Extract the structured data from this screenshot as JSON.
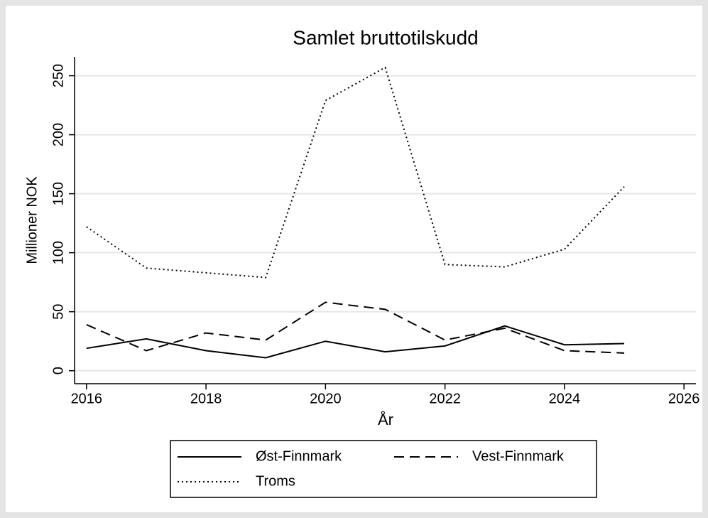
{
  "chart_data": {
    "type": "line",
    "title": "Samlet bruttotilskudd",
    "xlabel": "År",
    "ylabel": "Millioner NOK",
    "x": [
      2016,
      2017,
      2018,
      2019,
      2020,
      2021,
      2022,
      2023,
      2024,
      2025
    ],
    "series": [
      {
        "name": "Øst-Finnmark",
        "color": "#000000",
        "style": "solid",
        "values": [
          19,
          27,
          17,
          11,
          25,
          16,
          21,
          38,
          22,
          23
        ]
      },
      {
        "name": "Vest-Finnmark",
        "color": "#000000",
        "style": "dashed",
        "values": [
          39,
          17,
          32,
          26,
          58,
          52,
          26,
          36,
          17,
          15
        ]
      },
      {
        "name": "Troms",
        "color": "#000000",
        "style": "dotted",
        "values": [
          122,
          87,
          83,
          79,
          229,
          257,
          90,
          88,
          103,
          156
        ]
      }
    ],
    "xlim": [
      2015.8,
      2026.2
    ],
    "xticks": [
      2016,
      2018,
      2020,
      2022,
      2024,
      2026
    ],
    "ylim": [
      -11,
      266
    ],
    "yticks": [
      0,
      50,
      100,
      150,
      200,
      250
    ],
    "grid": true,
    "legend": "bottom"
  }
}
